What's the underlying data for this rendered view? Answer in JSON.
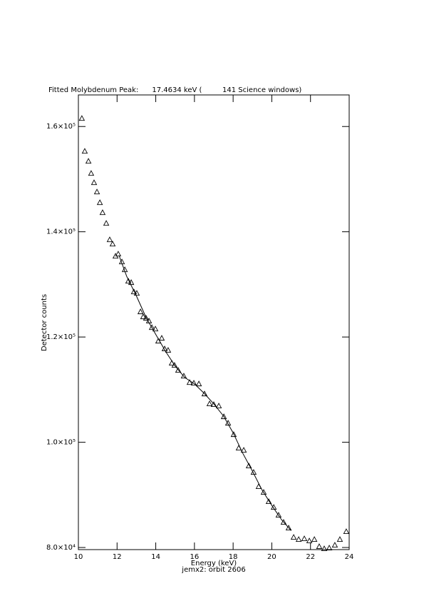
{
  "chart_data": {
    "type": "scatter",
    "title": "Fitted Molybdenum Peak:      17.4634 keV (         141 Science windows)",
    "x_label": "Energy (keV)",
    "subtitle": "jemx2: orbit 2606",
    "y_label": "Detector counts",
    "xlim": [
      10,
      24
    ],
    "xticks": [
      10,
      12,
      14,
      16,
      18,
      20,
      22,
      24
    ],
    "ylim": [
      79600,
      166000
    ],
    "yticks": [
      {
        "value": 80000,
        "label": "8.0×10⁴"
      },
      {
        "value": 100000,
        "label": "1.0×10⁵"
      },
      {
        "value": 120000,
        "label": "1.2×10⁵"
      },
      {
        "value": 140000,
        "label": "1.4×10⁵"
      },
      {
        "value": 160000,
        "label": "1.6×10⁵"
      }
    ],
    "color": "#000000",
    "series": [
      {
        "marker": "triangle",
        "x": [
          10.18,
          10.33,
          10.52,
          10.66,
          10.81,
          10.96,
          11.11,
          11.25,
          11.44,
          11.62,
          11.77,
          11.92,
          12.06,
          12.25,
          12.4,
          12.58,
          12.73,
          12.87,
          13.02,
          13.21,
          13.35,
          13.5,
          13.65,
          13.8,
          13.98,
          14.13,
          14.31,
          14.46,
          14.64,
          14.83,
          14.97,
          15.16,
          15.45,
          15.75,
          15.97,
          16.23,
          16.52,
          16.78,
          17.0,
          17.26,
          17.52,
          17.74,
          18.03,
          18.29,
          18.55,
          18.81,
          19.06,
          19.32,
          19.58,
          19.84,
          20.1,
          20.35,
          20.61,
          20.87,
          21.13,
          21.39,
          21.68,
          21.94,
          22.2,
          22.45,
          22.71,
          22.97,
          23.26,
          23.52,
          23.85
        ],
        "values": [
          161500,
          155260,
          153360,
          151050,
          149290,
          147530,
          145500,
          143600,
          141560,
          138440,
          137630,
          135320,
          135730,
          134240,
          132750,
          130580,
          130310,
          128540,
          128270,
          124750,
          123800,
          123530,
          122990,
          121760,
          121490,
          119190,
          119730,
          117700,
          117430,
          114990,
          114580,
          113630,
          112540,
          111320,
          111190,
          111050,
          109150,
          107260,
          107120,
          106850,
          104810,
          103590,
          101420,
          98850,
          98440,
          95460,
          94240,
          91530,
          90440,
          88680,
          87590,
          86100,
          84750,
          83660,
          81900,
          81490,
          81630,
          81220,
          81490,
          80140,
          79730,
          79860,
          80410,
          81490,
          82980
        ]
      },
      {
        "marker": "line",
        "x": [
          12.1,
          12.5,
          13,
          13.5,
          14,
          14.5,
          15,
          15.5,
          16,
          16.5,
          17,
          17.5,
          18,
          18.5,
          19,
          19.5,
          20,
          20.5,
          21
        ],
        "values": [
          135500,
          131500,
          127800,
          123700,
          120500,
          117300,
          114500,
          112300,
          111100,
          109300,
          107300,
          105000,
          101800,
          97900,
          94500,
          90900,
          88000,
          85300,
          83200
        ]
      }
    ]
  }
}
